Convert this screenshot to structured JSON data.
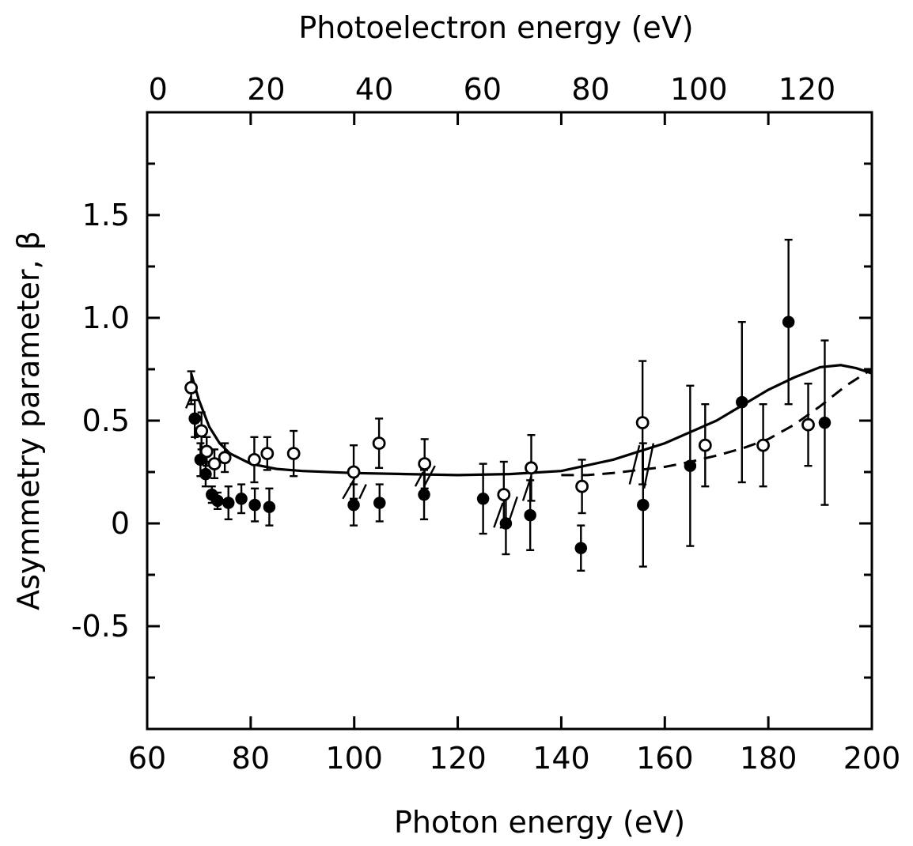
{
  "chart_data": {
    "type": "scatter",
    "title": "",
    "xlabel": "Photon energy (eV)",
    "ylabel": "Asymmetry parameter, β",
    "x2label": "Photoelectron energy (eV)",
    "xlim": [
      60,
      200
    ],
    "ylim": [
      -1.0,
      2.0
    ],
    "x2lim": [
      -2,
      132
    ],
    "x_ticks": [
      60,
      80,
      100,
      120,
      140,
      160,
      180,
      200
    ],
    "x_tick_labels": [
      "60",
      "80",
      "100",
      "120",
      "140",
      "160",
      "180",
      "200"
    ],
    "y_ticks": [
      -0.5,
      0,
      0.5,
      1.0,
      1.5
    ],
    "y_tick_labels": [
      "-0.5",
      "0",
      "0.5",
      "1.0",
      "1.5"
    ],
    "y_minor_ticks": [
      -0.75,
      -0.25,
      0.25,
      0.75,
      1.25,
      1.75
    ],
    "x2_ticks": [
      0,
      20,
      40,
      60,
      80,
      100,
      120
    ],
    "x2_tick_labels": [
      "0",
      "20",
      "40",
      "60",
      "80",
      "100",
      "120"
    ],
    "grid": false,
    "series": [
      {
        "marker": "open-circle",
        "points": [
          {
            "x": 68.5,
            "y": 0.66,
            "err": 0.08
          },
          {
            "x": 70.5,
            "y": 0.45,
            "err": 0.09
          },
          {
            "x": 71.5,
            "y": 0.35,
            "err": 0.07
          },
          {
            "x": 73.0,
            "y": 0.29,
            "err": 0.07
          },
          {
            "x": 75.0,
            "y": 0.32,
            "err": 0.07
          },
          {
            "x": 80.7,
            "y": 0.31,
            "err": 0.11
          },
          {
            "x": 83.2,
            "y": 0.34,
            "err": 0.08
          },
          {
            "x": 88.3,
            "y": 0.34,
            "err": 0.11
          },
          {
            "x": 99.9,
            "y": 0.25,
            "err": 0.13
          },
          {
            "x": 104.8,
            "y": 0.39,
            "err": 0.12
          },
          {
            "x": 113.6,
            "y": 0.29,
            "err": 0.12
          },
          {
            "x": 128.9,
            "y": 0.14,
            "err": 0.16
          },
          {
            "x": 134.2,
            "y": 0.27,
            "err": 0.16
          },
          {
            "x": 144.0,
            "y": 0.18,
            "err": 0.13
          },
          {
            "x": 155.7,
            "y": 0.49,
            "err": 0.3
          },
          {
            "x": 167.8,
            "y": 0.38,
            "err": 0.2
          },
          {
            "x": 179.0,
            "y": 0.38,
            "err": 0.2
          },
          {
            "x": 187.7,
            "y": 0.48,
            "err": 0.2
          }
        ]
      },
      {
        "marker": "filled-circle",
        "points": [
          {
            "x": 69.2,
            "y": 0.51,
            "err": 0.09
          },
          {
            "x": 70.3,
            "y": 0.31,
            "err": 0.08
          },
          {
            "x": 71.3,
            "y": 0.24,
            "err": 0.06
          },
          {
            "x": 72.5,
            "y": 0.14,
            "err": 0.04
          },
          {
            "x": 73.6,
            "y": 0.11,
            "err": 0.04
          },
          {
            "x": 75.7,
            "y": 0.1,
            "err": 0.08
          },
          {
            "x": 78.2,
            "y": 0.12,
            "err": 0.07
          },
          {
            "x": 80.8,
            "y": 0.09,
            "err": 0.08
          },
          {
            "x": 83.6,
            "y": 0.08,
            "err": 0.09
          },
          {
            "x": 99.9,
            "y": 0.09,
            "err": 0.1
          },
          {
            "x": 104.9,
            "y": 0.1,
            "err": 0.09
          },
          {
            "x": 113.5,
            "y": 0.14,
            "err": 0.12
          },
          {
            "x": 124.9,
            "y": 0.12,
            "err": 0.17
          },
          {
            "x": 129.3,
            "y": 0.0,
            "err": 0.15
          },
          {
            "x": 134.0,
            "y": 0.04,
            "err": 0.17
          },
          {
            "x": 143.8,
            "y": -0.12,
            "err": 0.11
          },
          {
            "x": 155.8,
            "y": 0.09,
            "err": 0.3
          },
          {
            "x": 164.9,
            "y": 0.28,
            "err": 0.39
          },
          {
            "x": 174.9,
            "y": 0.59,
            "err": 0.39
          },
          {
            "x": 183.9,
            "y": 0.98,
            "err": 0.4
          },
          {
            "x": 190.9,
            "y": 0.49,
            "err": 0.4
          }
        ]
      },
      {
        "marker": "solid-line",
        "x": [
          68.5,
          70,
          72,
          74,
          76,
          80,
          85,
          90,
          100,
          110,
          120,
          130,
          140,
          150,
          160,
          170,
          180,
          185,
          190,
          194,
          197,
          200
        ],
        "y": [
          0.73,
          0.6,
          0.47,
          0.39,
          0.34,
          0.29,
          0.265,
          0.255,
          0.245,
          0.24,
          0.235,
          0.24,
          0.255,
          0.31,
          0.39,
          0.5,
          0.65,
          0.71,
          0.76,
          0.77,
          0.755,
          0.73
        ]
      },
      {
        "marker": "dashed-line",
        "x": [
          140,
          145,
          150,
          155,
          160,
          165,
          170,
          175,
          180,
          185,
          190,
          195,
          200
        ],
        "y": [
          0.235,
          0.235,
          0.245,
          0.26,
          0.275,
          0.3,
          0.33,
          0.365,
          0.41,
          0.48,
          0.57,
          0.67,
          0.75
        ]
      }
    ],
    "connectors": [
      {
        "x1": 67.5,
        "y1": 0.56,
        "x2": 68.5,
        "y2": 0.62
      },
      {
        "x1": 69.2,
        "y1": 0.41,
        "x2": 70.2,
        "y2": 0.48
      },
      {
        "x1": 97.8,
        "y1": 0.12,
        "x2": 100.1,
        "y2": 0.22
      },
      {
        "x1": 101.0,
        "y1": 0.12,
        "x2": 102.3,
        "y2": 0.19
      },
      {
        "x1": 111.8,
        "y1": 0.18,
        "x2": 113.3,
        "y2": 0.25
      },
      {
        "x1": 113.5,
        "y1": 0.18,
        "x2": 115.6,
        "y2": 0.28
      },
      {
        "x1": 127.0,
        "y1": -0.02,
        "x2": 128.7,
        "y2": 0.1
      },
      {
        "x1": 129.5,
        "y1": -0.02,
        "x2": 131.5,
        "y2": 0.13
      },
      {
        "x1": 132.6,
        "y1": 0.11,
        "x2": 134.2,
        "y2": 0.23
      },
      {
        "x1": 153.2,
        "y1": 0.19,
        "x2": 155.1,
        "y2": 0.38
      },
      {
        "x1": 156.0,
        "y1": 0.17,
        "x2": 157.8,
        "y2": 0.39
      }
    ]
  }
}
